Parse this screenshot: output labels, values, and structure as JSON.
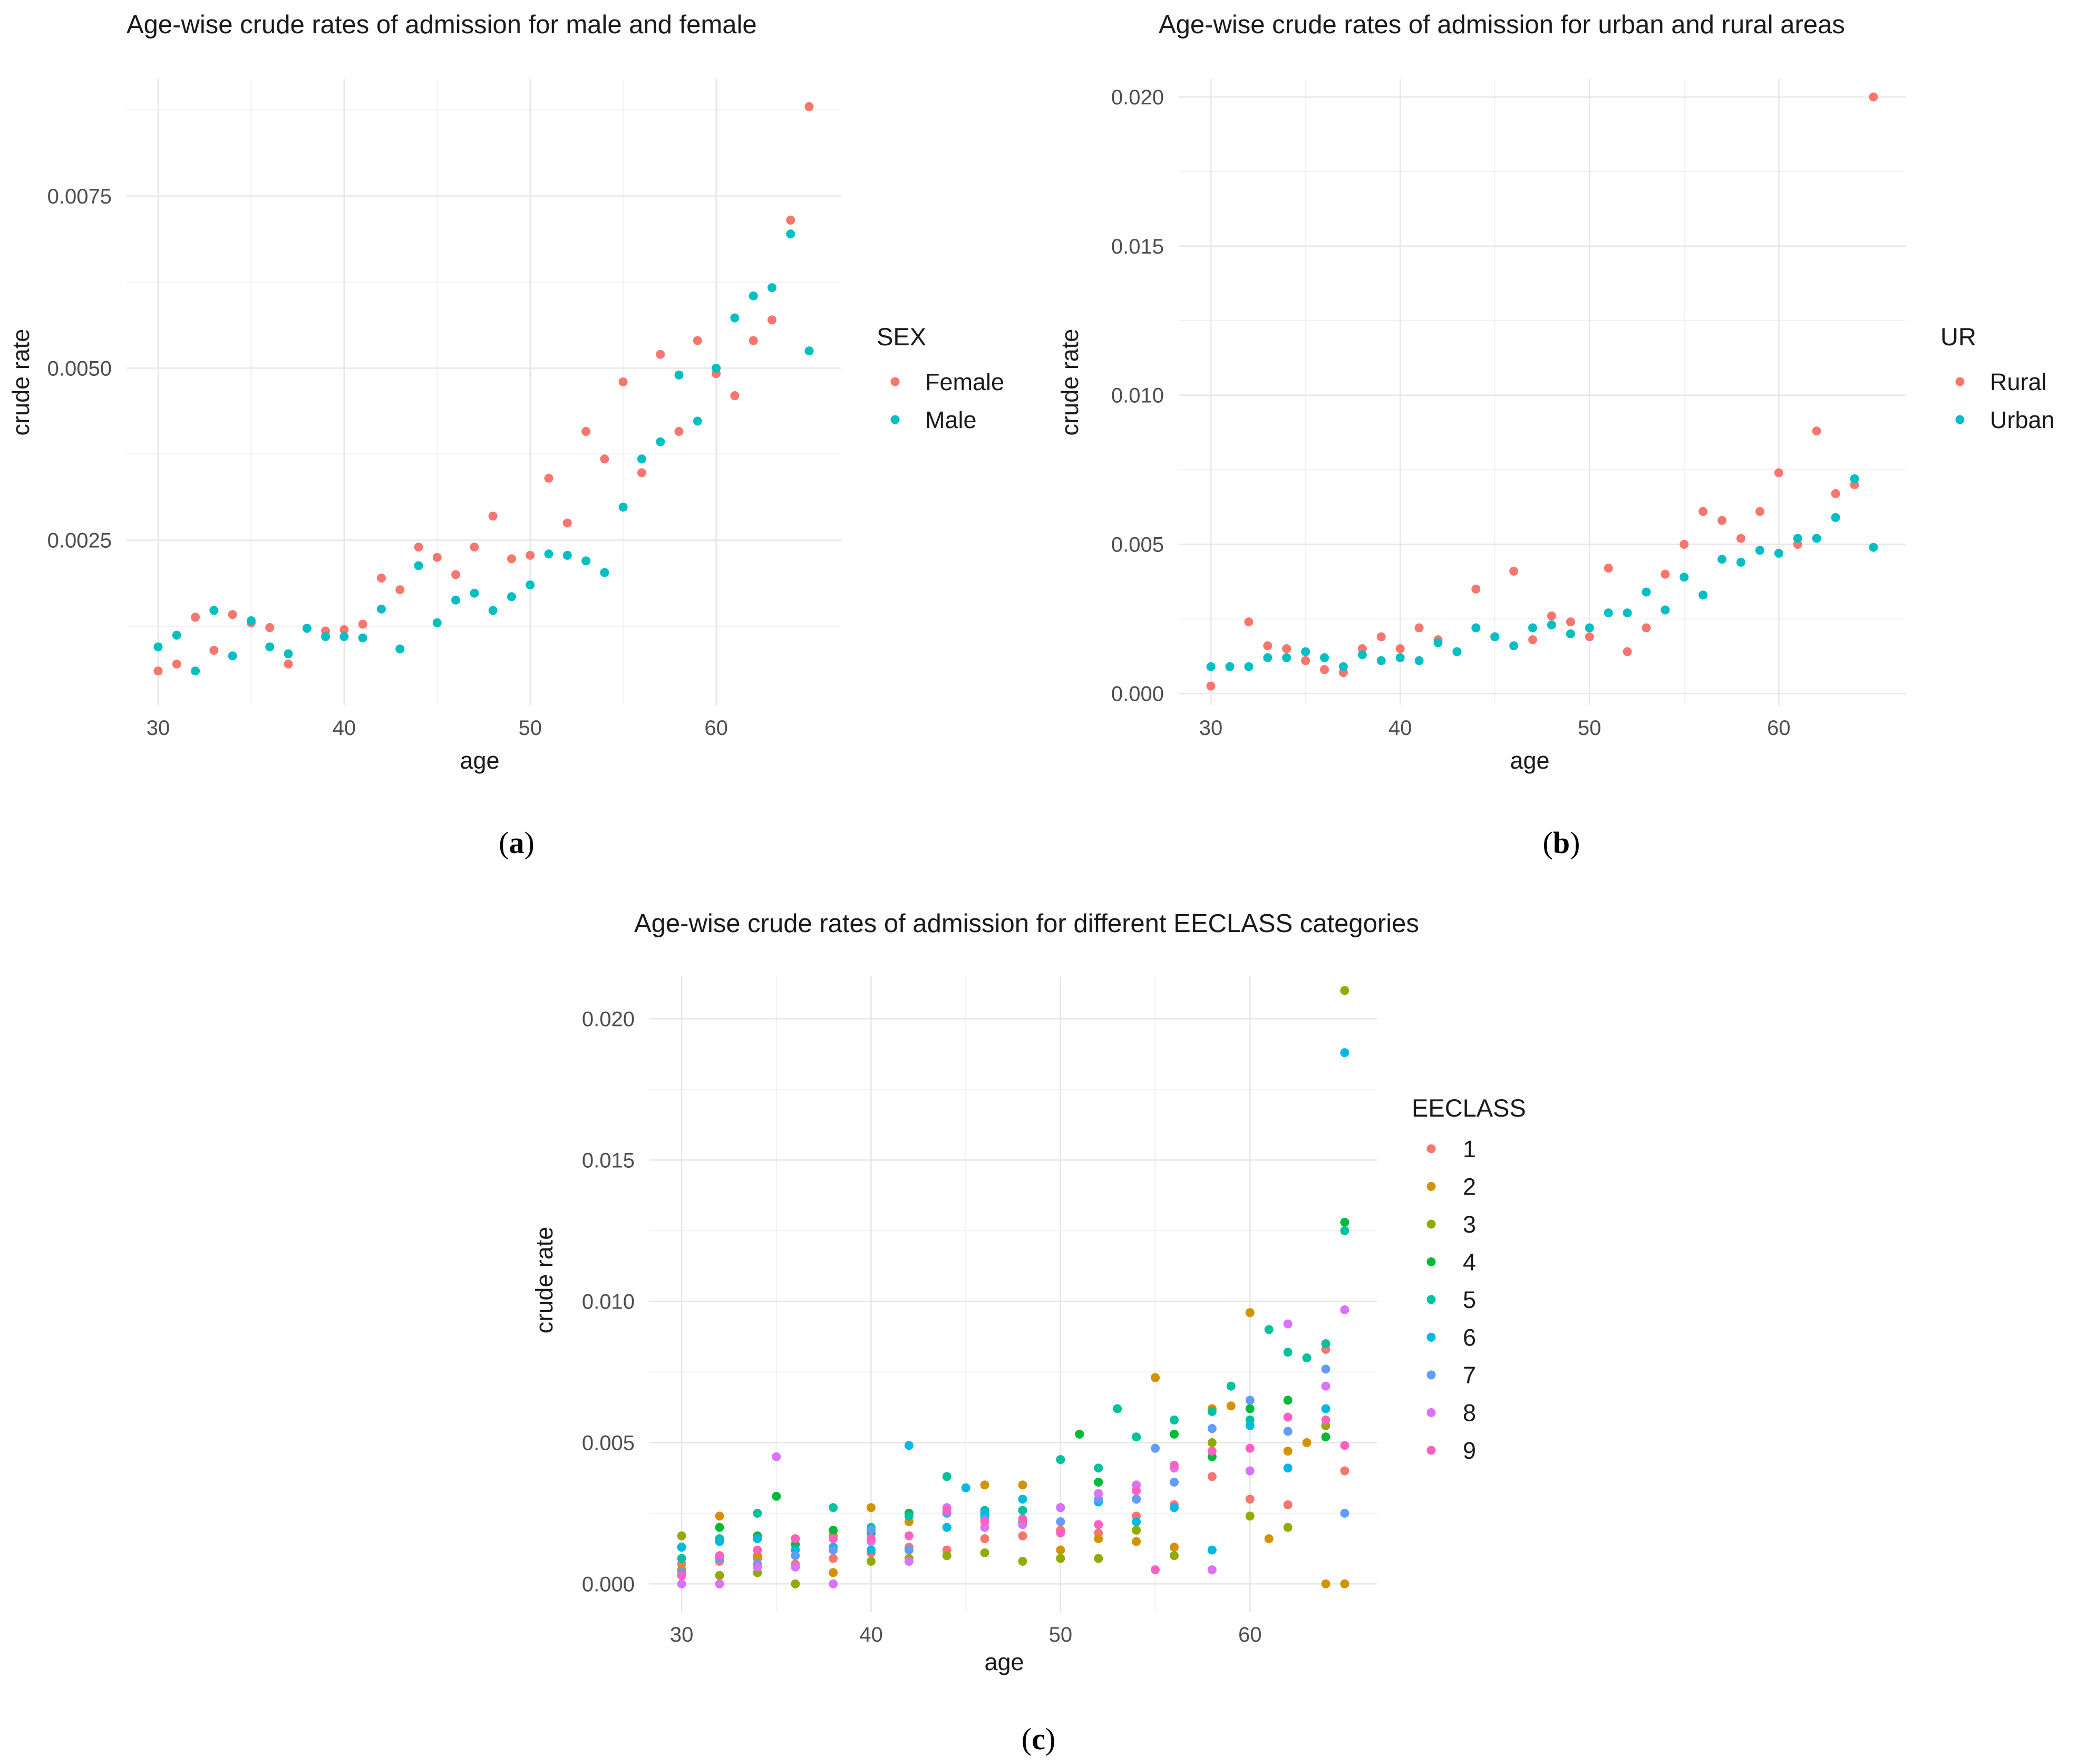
{
  "chart_data": [
    {
      "panel_label": "(a)",
      "panel_letter": "a",
      "type": "scatter",
      "title": "Age-wise crude rates of admission for male and female",
      "xlabel": "age",
      "ylabel": "crude rate",
      "xlim": [
        28.3,
        66.7
      ],
      "ylim": [
        0.0001,
        0.0092
      ],
      "x_ticks": [
        30,
        40,
        50,
        60
      ],
      "y_ticks": [
        0.0025,
        0.005,
        0.0075
      ],
      "y_tick_labels": [
        "0.0025",
        "0.0050",
        "0.0075"
      ],
      "grid": true,
      "legend_title": "SEX",
      "series": [
        {
          "name": "Female",
          "color": "#F8766D",
          "x": [
            30,
            31,
            32,
            33,
            34,
            35,
            36,
            37,
            38,
            39,
            40,
            41,
            42,
            43,
            44,
            45,
            46,
            47,
            48,
            49,
            50,
            51,
            52,
            53,
            54,
            55,
            56,
            57,
            58,
            59,
            60,
            61,
            62,
            63,
            64,
            65
          ],
          "values": [
            0.0006,
            0.0007,
            0.00138,
            0.0009,
            0.00142,
            0.0013,
            0.00123,
            0.0007,
            0.00122,
            0.00118,
            0.0012,
            0.00128,
            0.00195,
            0.00178,
            0.0024,
            0.00225,
            0.002,
            0.0024,
            0.00285,
            0.00223,
            0.00228,
            0.0034,
            0.00275,
            0.00408,
            0.00368,
            0.0048,
            0.00348,
            0.0052,
            0.00408,
            0.0054,
            0.00492,
            0.0046,
            0.0054,
            0.0057,
            0.00715,
            0.0088
          ]
        },
        {
          "name": "Male",
          "color": "#00BFC4",
          "x": [
            30,
            31,
            32,
            33,
            34,
            35,
            36,
            37,
            38,
            39,
            40,
            41,
            42,
            43,
            44,
            45,
            46,
            47,
            48,
            49,
            50,
            51,
            52,
            53,
            54,
            55,
            56,
            57,
            58,
            59,
            60,
            61,
            62,
            63,
            64,
            65
          ],
          "values": [
            0.00095,
            0.00112,
            0.0006,
            0.00148,
            0.00082,
            0.00133,
            0.00095,
            0.00085,
            0.00122,
            0.0011,
            0.0011,
            0.00108,
            0.0015,
            0.00092,
            0.00213,
            0.0013,
            0.00163,
            0.00173,
            0.00148,
            0.00168,
            0.00185,
            0.0023,
            0.00228,
            0.0022,
            0.00203,
            0.00298,
            0.00368,
            0.00393,
            0.0049,
            0.00423,
            0.005,
            0.00573,
            0.00605,
            0.00617,
            0.00695,
            0.00525
          ]
        }
      ]
    },
    {
      "panel_label": "(b)",
      "panel_letter": "b",
      "type": "scatter",
      "title": "Age-wise crude rates of admission for urban and rural areas",
      "xlabel": "age",
      "ylabel": "crude rate",
      "xlim": [
        28.3,
        66.7
      ],
      "ylim": [
        -0.0004,
        0.0206
      ],
      "x_ticks": [
        30,
        40,
        50,
        60
      ],
      "y_ticks": [
        0,
        0.005,
        0.01,
        0.015,
        0.02
      ],
      "y_tick_labels": [
        "0.000",
        "0.005",
        "0.010",
        "0.015",
        "0.020"
      ],
      "grid": true,
      "legend_title": "UR",
      "series": [
        {
          "name": "Rural",
          "color": "#F8766D",
          "x": [
            30,
            31,
            32,
            33,
            34,
            35,
            36,
            37,
            38,
            39,
            40,
            41,
            42,
            43,
            44,
            45,
            46,
            47,
            48,
            49,
            50,
            51,
            52,
            53,
            54,
            55,
            56,
            57,
            58,
            59,
            60,
            61,
            62,
            63,
            64,
            65
          ],
          "values": [
            0.00025,
            0.0009,
            0.0024,
            0.0016,
            0.0015,
            0.0011,
            0.0008,
            0.0007,
            0.0015,
            0.0019,
            0.0015,
            0.0022,
            0.0018,
            0.0014,
            0.0035,
            0.0019,
            0.0041,
            0.0018,
            0.0026,
            0.0024,
            0.0019,
            0.0042,
            0.0014,
            0.0022,
            0.004,
            0.005,
            0.0061,
            0.0058,
            0.0052,
            0.0061,
            0.0074,
            0.005,
            0.0088,
            0.0067,
            0.007,
            0.02
          ]
        },
        {
          "name": "Urban",
          "color": "#00BFC4",
          "x": [
            30,
            31,
            32,
            33,
            34,
            35,
            36,
            37,
            38,
            39,
            40,
            41,
            42,
            43,
            44,
            45,
            46,
            47,
            48,
            49,
            50,
            51,
            52,
            53,
            54,
            55,
            56,
            57,
            58,
            59,
            60,
            61,
            62,
            63,
            64,
            65
          ],
          "values": [
            0.0009,
            0.0009,
            0.0009,
            0.0012,
            0.0012,
            0.0014,
            0.0012,
            0.0009,
            0.0013,
            0.0011,
            0.0012,
            0.0011,
            0.0017,
            0.0014,
            0.0022,
            0.0019,
            0.0016,
            0.0022,
            0.0023,
            0.002,
            0.0022,
            0.0027,
            0.0027,
            0.0034,
            0.0028,
            0.0039,
            0.0033,
            0.0045,
            0.0044,
            0.0048,
            0.0047,
            0.0052,
            0.0052,
            0.0059,
            0.0072,
            0.0049
          ]
        }
      ]
    },
    {
      "panel_label": "(c)",
      "panel_letter": "c",
      "type": "scatter",
      "title": "Age-wise crude rates of admission for different EECLASS categories",
      "xlabel": "age",
      "ylabel": "crude rate",
      "xlim": [
        28.3,
        66.7
      ],
      "ylim": [
        -0.001,
        0.0215
      ],
      "x_ticks": [
        30,
        40,
        50,
        60
      ],
      "y_ticks": [
        0,
        0.005,
        0.01,
        0.015,
        0.02
      ],
      "y_tick_labels": [
        "0.000",
        "0.005",
        "0.010",
        "0.015",
        "0.020"
      ],
      "grid": true,
      "legend_title": "EECLASS",
      "series": [
        {
          "name": "1",
          "color": "#F8766D",
          "x": [
            30,
            32,
            34,
            36,
            38,
            40,
            42,
            44,
            46,
            48,
            50,
            52,
            54,
            56,
            58,
            60,
            62,
            64,
            65
          ],
          "values": [
            0.0007,
            0.0008,
            0.0009,
            0.0007,
            0.0009,
            0.0011,
            0.0013,
            0.0012,
            0.0016,
            0.0017,
            0.0019,
            0.0018,
            0.0024,
            0.0028,
            0.0038,
            0.003,
            0.0028,
            0.0083,
            0.004
          ]
        },
        {
          "name": "2",
          "color": "#D39200",
          "x": [
            30,
            32,
            34,
            36,
            38,
            40,
            42,
            44,
            46,
            48,
            50,
            52,
            54,
            55,
            56,
            58,
            59,
            60,
            61,
            62,
            63,
            64,
            65
          ],
          "values": [
            0.0005,
            0.0024,
            0.001,
            0.0006,
            0.0004,
            0.0027,
            0.0022,
            0.002,
            0.0035,
            0.0035,
            0.0012,
            0.0016,
            0.0015,
            0.0073,
            0.0013,
            0.0062,
            0.0063,
            0.0096,
            0.0016,
            0.0047,
            0.005,
            0.0,
            0.0
          ]
        },
        {
          "name": "3",
          "color": "#93AA00",
          "x": [
            30,
            32,
            34,
            36,
            38,
            40,
            42,
            44,
            46,
            48,
            50,
            52,
            54,
            56,
            58,
            60,
            62,
            64,
            65
          ],
          "values": [
            0.0017,
            0.0003,
            0.0004,
            0.0,
            0.0017,
            0.0008,
            0.0009,
            0.001,
            0.0011,
            0.0008,
            0.0009,
            0.0009,
            0.0019,
            0.001,
            0.005,
            0.0024,
            0.002,
            0.0056,
            0.021
          ]
        },
        {
          "name": "4",
          "color": "#00BA38",
          "x": [
            30,
            32,
            34,
            35,
            36,
            38,
            40,
            42,
            44,
            46,
            48,
            50,
            51,
            52,
            54,
            56,
            58,
            60,
            62,
            64,
            65
          ],
          "values": [
            0.0013,
            0.002,
            0.0017,
            0.0031,
            0.0014,
            0.0019,
            0.0018,
            0.0025,
            0.0025,
            0.0024,
            0.0022,
            0.0027,
            0.0053,
            0.0036,
            0.003,
            0.0053,
            0.0045,
            0.0062,
            0.0065,
            0.0052,
            0.0128
          ]
        },
        {
          "name": "5",
          "color": "#00C19F",
          "x": [
            30,
            32,
            34,
            36,
            38,
            40,
            42,
            44,
            46,
            48,
            50,
            52,
            53,
            54,
            56,
            58,
            59,
            60,
            61,
            62,
            63,
            64,
            65
          ],
          "values": [
            0.0009,
            0.0016,
            0.0025,
            0.0016,
            0.0027,
            0.002,
            0.0024,
            0.0038,
            0.0026,
            0.0026,
            0.0044,
            0.0041,
            0.0062,
            0.0052,
            0.0058,
            0.0061,
            0.007,
            0.0058,
            0.009,
            0.0082,
            0.008,
            0.0085,
            0.0125
          ]
        },
        {
          "name": "6",
          "color": "#00B9E3",
          "x": [
            30,
            32,
            34,
            36,
            38,
            40,
            42,
            44,
            45,
            46,
            48,
            50,
            52,
            54,
            56,
            58,
            60,
            62,
            64,
            65
          ],
          "values": [
            0.0013,
            0.0015,
            0.0016,
            0.0012,
            0.0013,
            0.0012,
            0.0049,
            0.002,
            0.0034,
            0.0025,
            0.003,
            0.0027,
            0.0029,
            0.0022,
            0.0027,
            0.0012,
            0.0056,
            0.0041,
            0.0062,
            0.0188
          ]
        },
        {
          "name": "7",
          "color": "#619CFF",
          "x": [
            30,
            32,
            34,
            36,
            38,
            40,
            42,
            44,
            46,
            48,
            50,
            52,
            54,
            55,
            56,
            58,
            60,
            62,
            64,
            65
          ],
          "values": [
            0.0004,
            0.0009,
            0.0007,
            0.001,
            0.0012,
            0.0019,
            0.0012,
            0.0025,
            0.0023,
            0.0021,
            0.0022,
            0.003,
            0.003,
            0.0048,
            0.0036,
            0.0055,
            0.0065,
            0.0054,
            0.0076,
            0.0025
          ]
        },
        {
          "name": "8",
          "color": "#DB72FB",
          "x": [
            30,
            32,
            34,
            35,
            36,
            38,
            40,
            42,
            44,
            46,
            48,
            50,
            52,
            54,
            56,
            58,
            60,
            62,
            64,
            65
          ],
          "values": [
            0.0,
            0.0,
            0.0006,
            0.0045,
            0.0006,
            0.0,
            0.0015,
            0.0008,
            0.0027,
            0.002,
            0.0021,
            0.0027,
            0.0032,
            0.0035,
            0.0041,
            0.0005,
            0.004,
            0.0092,
            0.007,
            0.0097
          ]
        },
        {
          "name": "9",
          "color": "#FF61C3",
          "x": [
            30,
            32,
            34,
            36,
            38,
            40,
            42,
            44,
            46,
            48,
            50,
            52,
            54,
            55,
            56,
            58,
            60,
            62,
            64,
            65
          ],
          "values": [
            0.0003,
            0.001,
            0.0012,
            0.0016,
            0.0016,
            0.0016,
            0.0017,
            0.0026,
            0.0022,
            0.0023,
            0.0018,
            0.0021,
            0.0033,
            0.0005,
            0.0042,
            0.0047,
            0.0048,
            0.0059,
            0.0058,
            0.0049
          ]
        }
      ]
    }
  ]
}
